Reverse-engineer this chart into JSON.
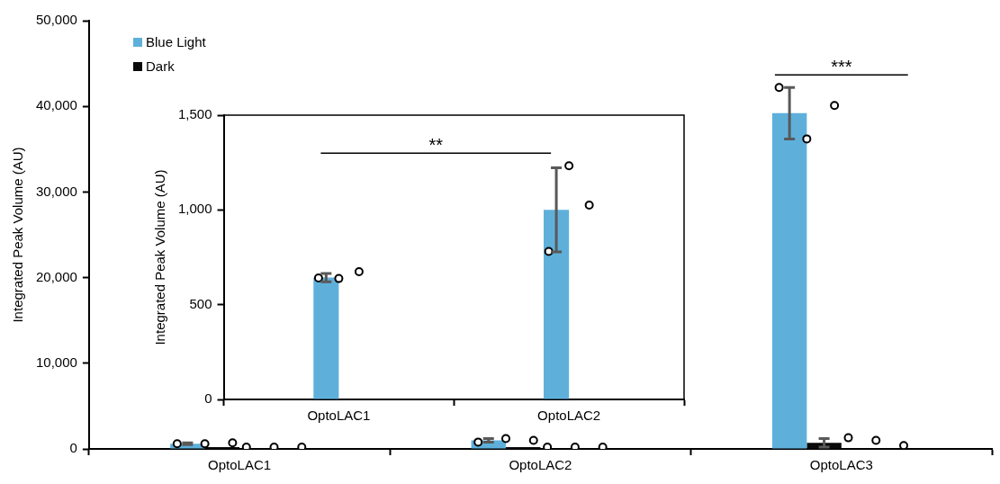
{
  "chart_data": [
    {
      "type": "bar",
      "ylabel": "Integrated Peak Volume (AU)",
      "categories": [
        "OptoLAC1",
        "OptoLAC2",
        "OptoLAC3"
      ],
      "series": [
        {
          "name": "Blue Light",
          "color": "#5eb0db",
          "values": [
            600,
            1000,
            39200
          ],
          "errors": [
            100,
            200,
            3000
          ]
        },
        {
          "name": "Dark",
          "color": "#0a0a0a",
          "values": [
            200,
            200,
            700
          ],
          "errors": [
            null,
            null,
            500
          ]
        },
        {
          "type": "scatter",
          "color": "#000000",
          "x": [
            "OptoLAC1",
            "OptoLAC1",
            "OptoLAC1",
            "OptoLAC2",
            "OptoLAC2",
            "OptoLAC2",
            "OptoLAC3",
            "OptoLAC3",
            "OptoLAC3"
          ],
          "values": [
            600,
            600,
            700,
            800,
            1200,
            1000,
            42200,
            36200,
            40100
          ]
        },
        {
          "type": "scatter",
          "color": "#000000",
          "x": [
            "OptoLAC1",
            "OptoLAC1",
            "OptoLAC1",
            "OptoLAC2",
            "OptoLAC2",
            "OptoLAC2",
            "OptoLAC3",
            "OptoLAC3",
            "OptoLAC3"
          ],
          "values": [
            200,
            200,
            200,
            200,
            200,
            200,
            1300,
            1000,
            400
          ]
        }
      ],
      "ylim": [
        0,
        50000
      ],
      "yticks": [
        {
          "value": 0,
          "label": "0"
        },
        {
          "value": 10000,
          "label": "10,000"
        },
        {
          "value": 20000,
          "label": "20,000"
        },
        {
          "value": 30000,
          "label": "30,000"
        },
        {
          "value": 40000,
          "label": "40,000"
        },
        {
          "value": 50000,
          "label": "50,000"
        }
      ],
      "annotations": [
        "***"
      ],
      "legend": "top left",
      "marker": "circle",
      "grid": false
    },
    {
      "type": "bar",
      "ylabel": "Integrated Peak Volume (AU)",
      "categories": [
        "OptoLAC1",
        "OptoLAC2"
      ],
      "series": [
        {
          "color": "#5eb0db",
          "values": [
            643,
            1000
          ],
          "errors": [
            22,
            222
          ]
        },
        {
          "type": "scatter",
          "color": "#000000",
          "x": [
            "OptoLAC1",
            "OptoLAC1",
            "OptoLAC1",
            "OptoLAC2",
            "OptoLAC2",
            "OptoLAC2"
          ],
          "values": [
            641,
            638,
            674,
            781,
            1233,
            1025
          ]
        }
      ],
      "ylim": [
        0,
        1500
      ],
      "yticks": [
        0,
        500,
        {
          "value": 1000,
          "label": "1,000"
        },
        {
          "value": 1500,
          "label": "1,500"
        }
      ],
      "annotations": [
        "**"
      ],
      "legend": false,
      "marker": "circle",
      "grid": false
    }
  ]
}
